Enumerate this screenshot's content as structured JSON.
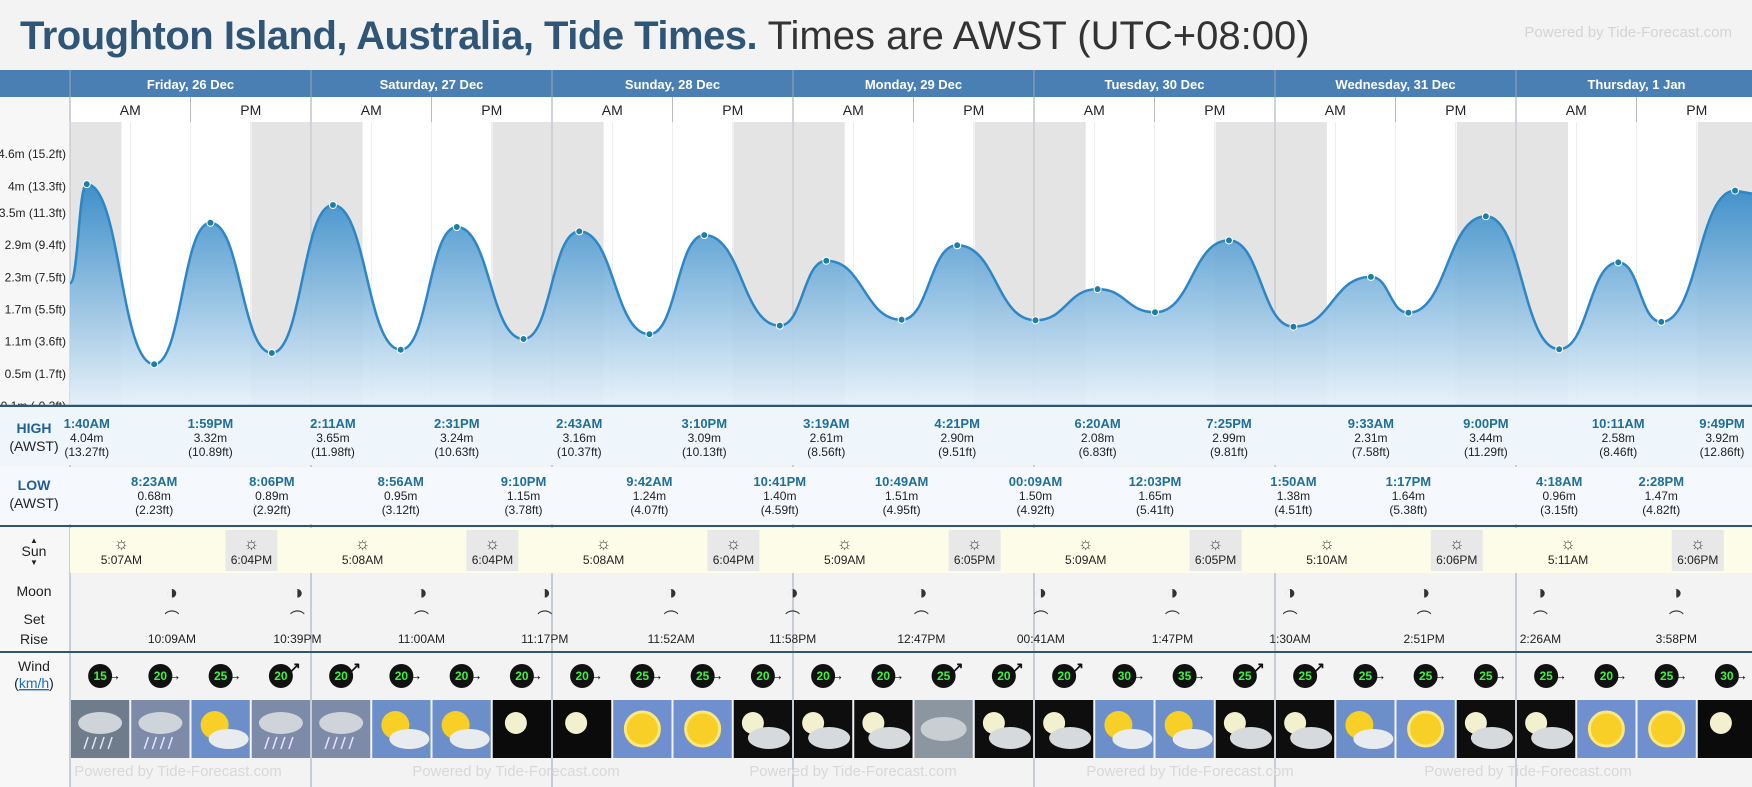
{
  "header": {
    "place": "Troughton Island, Australia, Tide Times.",
    "subtitle": "Times are AWST (UTC+08:00)",
    "powered": "Powered by Tide-Forecast.com"
  },
  "footer": {
    "powered": "Powered by Tide-Forecast.com"
  },
  "labels": {
    "high": "HIGH",
    "low": "LOW",
    "tz": "(AWST)",
    "sun": "Sun",
    "moon": "Moon",
    "set": "Set",
    "rise": "Rise",
    "wind": "Wind",
    "wind_unit": "km/h",
    "am": "AM",
    "pm": "PM"
  },
  "chart_data": {
    "type": "area",
    "unit": "m",
    "y_ticks": [
      "4.6m (15.2ft)",
      "4m (13.3ft)",
      "3.5m (11.3ft)",
      "2.9m (9.4ft)",
      "2.3m (7.5ft)",
      "1.7m (5.5ft)",
      "1.1m (3.6ft)",
      "0.5m (1.7ft)",
      "-0.1m (-0.2ft)"
    ],
    "y_tick_values": [
      4.6,
      4.0,
      3.5,
      2.9,
      2.3,
      1.7,
      1.1,
      0.5,
      -0.1
    ],
    "ylim": [
      -0.1,
      5.2
    ],
    "x_start": "Friday, 26 Dec 00:00",
    "colors": {
      "fill_top": "#2d86c6",
      "fill_bottom": "#e6f1fa",
      "line": "#2d86c6",
      "marker": "#1d7fa8",
      "night": "#e4e4e4",
      "day": "#ffffff"
    },
    "days": [
      {
        "label": "Friday, 26 Dec",
        "sunrise": "5:07AM",
        "sunset": "6:04PM",
        "moonset": "10:09AM",
        "moonrise": "10:39PM"
      },
      {
        "label": "Saturday, 27 Dec",
        "sunrise": "5:08AM",
        "sunset": "6:04PM",
        "moonset": "11:00AM",
        "moonrise": "11:17PM"
      },
      {
        "label": "Sunday, 28 Dec",
        "sunrise": "5:08AM",
        "sunset": "6:04PM",
        "moonset": "11:52AM",
        "moonrise": "11:58PM"
      },
      {
        "label": "Monday, 29 Dec",
        "sunrise": "5:09AM",
        "sunset": "6:05PM",
        "moonset": "12:47PM",
        "moonrise": ""
      },
      {
        "label": "Tuesday, 30 Dec",
        "sunrise": "5:09AM",
        "sunset": "6:05PM",
        "moonset": "1:47PM",
        "moonrise": "00:41AM"
      },
      {
        "label": "Wednesday, 31 Dec",
        "sunrise": "5:10AM",
        "sunset": "6:06PM",
        "moonset": "2:51PM",
        "moonrise": "1:30AM"
      },
      {
        "label": "Thursday, 1 Jan",
        "sunrise": "5:11AM",
        "sunset": "6:06PM",
        "moonset": "3:58PM",
        "moonrise": "2:26AM"
      }
    ],
    "tides": [
      {
        "type": "high",
        "day": 0,
        "time": "1:40AM",
        "m": "4.04m",
        "ft": "(13.27ft)",
        "h": 4.04
      },
      {
        "type": "low",
        "day": 0,
        "time": "8:23AM",
        "m": "0.68m",
        "ft": "(2.23ft)",
        "h": 0.68
      },
      {
        "type": "high",
        "day": 0,
        "time": "1:59PM",
        "m": "3.32m",
        "ft": "(10.89ft)",
        "h": 3.32
      },
      {
        "type": "low",
        "day": 0,
        "time": "8:06PM",
        "m": "0.89m",
        "ft": "(2.92ft)",
        "h": 0.89
      },
      {
        "type": "high",
        "day": 1,
        "time": "2:11AM",
        "m": "3.65m",
        "ft": "(11.98ft)",
        "h": 3.65
      },
      {
        "type": "low",
        "day": 1,
        "time": "8:56AM",
        "m": "0.95m",
        "ft": "(3.12ft)",
        "h": 0.95
      },
      {
        "type": "high",
        "day": 1,
        "time": "2:31PM",
        "m": "3.24m",
        "ft": "(10.63ft)",
        "h": 3.24
      },
      {
        "type": "low",
        "day": 1,
        "time": "9:10PM",
        "m": "1.15m",
        "ft": "(3.78ft)",
        "h": 1.15
      },
      {
        "type": "high",
        "day": 2,
        "time": "2:43AM",
        "m": "3.16m",
        "ft": "(10.37ft)",
        "h": 3.16
      },
      {
        "type": "low",
        "day": 2,
        "time": "9:42AM",
        "m": "1.24m",
        "ft": "(4.07ft)",
        "h": 1.24
      },
      {
        "type": "high",
        "day": 2,
        "time": "3:10PM",
        "m": "3.09m",
        "ft": "(10.13ft)",
        "h": 3.09
      },
      {
        "type": "low",
        "day": 2,
        "time": "10:41PM",
        "m": "1.40m",
        "ft": "(4.59ft)",
        "h": 1.4
      },
      {
        "type": "high",
        "day": 3,
        "time": "3:19AM",
        "m": "2.61m",
        "ft": "(8.56ft)",
        "h": 2.61
      },
      {
        "type": "low",
        "day": 3,
        "time": "10:49AM",
        "m": "1.51m",
        "ft": "(4.95ft)",
        "h": 1.51
      },
      {
        "type": "high",
        "day": 3,
        "time": "4:21PM",
        "m": "2.90m",
        "ft": "(9.51ft)",
        "h": 2.9
      },
      {
        "type": "low",
        "day": 4,
        "time": "00:09AM",
        "m": "1.50m",
        "ft": "(4.92ft)",
        "h": 1.5
      },
      {
        "type": "high",
        "day": 4,
        "time": "6:20AM",
        "m": "2.08m",
        "ft": "(6.83ft)",
        "h": 2.08
      },
      {
        "type": "low",
        "day": 4,
        "time": "12:03PM",
        "m": "1.65m",
        "ft": "(5.41ft)",
        "h": 1.65
      },
      {
        "type": "high",
        "day": 4,
        "time": "7:25PM",
        "m": "2.99m",
        "ft": "(9.81ft)",
        "h": 2.99
      },
      {
        "type": "low",
        "day": 5,
        "time": "1:50AM",
        "m": "1.38m",
        "ft": "(4.51ft)",
        "h": 1.38
      },
      {
        "type": "high",
        "day": 5,
        "time": "9:33AM",
        "m": "2.31m",
        "ft": "(7.58ft)",
        "h": 2.31
      },
      {
        "type": "low",
        "day": 5,
        "time": "1:17PM",
        "m": "1.64m",
        "ft": "(5.38ft)",
        "h": 1.64
      },
      {
        "type": "high",
        "day": 5,
        "time": "9:00PM",
        "m": "3.44m",
        "ft": "(11.29ft)",
        "h": 3.44
      },
      {
        "type": "low",
        "day": 6,
        "time": "4:18AM",
        "m": "0.96m",
        "ft": "(3.15ft)",
        "h": 0.96
      },
      {
        "type": "high",
        "day": 6,
        "time": "10:11AM",
        "m": "2.58m",
        "ft": "(8.46ft)",
        "h": 2.58
      },
      {
        "type": "low",
        "day": 6,
        "time": "2:28PM",
        "m": "1.47m",
        "ft": "(4.82ft)",
        "h": 1.47
      },
      {
        "type": "high",
        "day": 6,
        "time": "9:49PM",
        "m": "3.92m",
        "ft": "(12.86ft)",
        "h": 3.92
      }
    ],
    "wind": [
      15,
      20,
      25,
      20,
      20,
      20,
      20,
      20,
      20,
      25,
      25,
      20,
      20,
      20,
      25,
      20,
      20,
      30,
      35,
      25,
      25,
      25,
      25,
      25,
      25,
      20,
      25,
      30
    ],
    "wind_direction": [
      "east",
      "east",
      "east",
      "northeast",
      "northeast",
      "east",
      "east",
      "east",
      "east",
      "east",
      "east",
      "east",
      "east",
      "east",
      "northeast",
      "northeast",
      "northeast",
      "east",
      "east",
      "northeast",
      "northeast",
      "east",
      "east",
      "east",
      "east",
      "east",
      "east",
      "east"
    ],
    "moon_phase_icons": [
      "half-moon-icon",
      "half-moon-icon",
      "half-moon-icon",
      "half-moon-icon",
      "waxing-moon-icon",
      "waxing-moon-icon",
      "crescent-moon-icon"
    ],
    "weather": [
      "rain",
      "storm",
      "partly-sunny",
      "storm",
      "storm",
      "partly-sunny",
      "partly-sunny",
      "clear-night",
      "clear-night",
      "sunny",
      "sunny",
      "cloudy-night",
      "cloudy-night",
      "cloudy-night",
      "overcast",
      "cloudy-night",
      "cloudy-night",
      "partly-sunny",
      "partly-sunny",
      "cloudy-night",
      "cloudy-night",
      "partly-sunny",
      "sunny",
      "cloudy-night",
      "cloudy-night",
      "sunny",
      "sunny",
      "clear-night"
    ]
  }
}
